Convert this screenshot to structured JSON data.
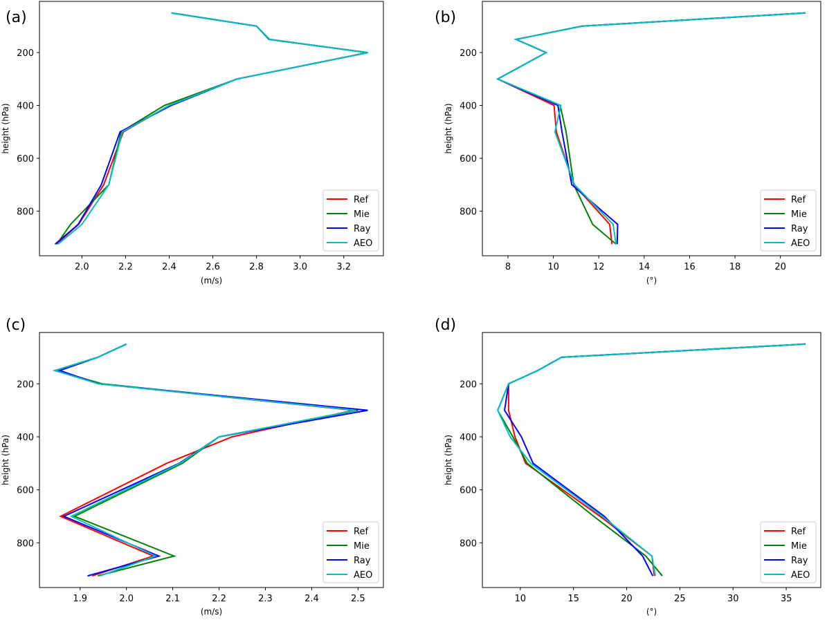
{
  "chart_data": [
    {
      "type": "line",
      "panel_label": "(a)",
      "xlabel": "(m/s)",
      "ylabel": "height (hPa)",
      "y": [
        50,
        100,
        150,
        200,
        300,
        400,
        500,
        700,
        850,
        925
      ],
      "yticks": [
        200,
        400,
        600,
        800
      ],
      "xticks": [
        2.0,
        2.2,
        2.4,
        2.6,
        2.8,
        3.0,
        3.2
      ],
      "xtick_labels": [
        "2.0",
        "2.2",
        "2.4",
        "2.6",
        "2.8",
        "3.0",
        "3.2"
      ],
      "legend": "lower-right",
      "series": [
        {
          "name": "Ref",
          "color": "#ff0000",
          "values": [
            2.41,
            2.8,
            2.86,
            3.31,
            2.71,
            2.4,
            2.19,
            2.1,
            1.985,
            1.883
          ]
        },
        {
          "name": "Mie",
          "color": "#008000",
          "values": [
            2.41,
            2.8,
            2.857,
            3.31,
            2.71,
            2.378,
            2.18,
            2.123,
            1.948,
            1.885
          ]
        },
        {
          "name": "Ray",
          "color": "#0000ff",
          "values": [
            2.41,
            2.8,
            2.86,
            3.31,
            2.71,
            2.41,
            2.175,
            2.089,
            1.983,
            1.877
          ]
        },
        {
          "name": "AEO",
          "color": "#00bfbf",
          "values": [
            2.41,
            2.8,
            2.86,
            3.31,
            2.71,
            2.4,
            2.185,
            2.123,
            2.0,
            1.89
          ]
        }
      ]
    },
    {
      "type": "line",
      "panel_label": "(b)",
      "xlabel": "(°)",
      "ylabel": "height (hPa)",
      "y": [
        50,
        100,
        150,
        200,
        300,
        400,
        500,
        700,
        850,
        925
      ],
      "yticks": [
        200,
        400,
        600,
        800
      ],
      "xticks": [
        8,
        10,
        12,
        14,
        16,
        18,
        20
      ],
      "xtick_labels": [
        "8",
        "10",
        "12",
        "14",
        "16",
        "18",
        "20"
      ],
      "legend": "lower-right",
      "series": [
        {
          "name": "Ref",
          "color": "#ff0000",
          "values": [
            21.1,
            11.27,
            8.36,
            9.68,
            7.55,
            10.03,
            10.13,
            10.91,
            12.48,
            12.58
          ]
        },
        {
          "name": "Mie",
          "color": "#008000",
          "values": [
            21.1,
            11.27,
            8.36,
            9.68,
            7.55,
            10.3,
            10.56,
            10.9,
            11.73,
            12.76
          ]
        },
        {
          "name": "Ray",
          "color": "#0000ff",
          "values": [
            21.1,
            11.27,
            8.36,
            9.68,
            7.55,
            10.2,
            10.38,
            10.81,
            12.83,
            12.81
          ]
        },
        {
          "name": "AEO",
          "color": "#00bfbf",
          "values": [
            21.1,
            11.27,
            8.36,
            9.68,
            7.55,
            10.33,
            10.07,
            10.93,
            12.63,
            12.76
          ]
        }
      ]
    },
    {
      "type": "line",
      "panel_label": "(c)",
      "xlabel": "(m/s)",
      "ylabel": "height (hPa)",
      "y": [
        50,
        100,
        150,
        200,
        300,
        400,
        500,
        700,
        850,
        925
      ],
      "yticks": [
        200,
        400,
        600,
        800
      ],
      "xticks": [
        1.9,
        2.0,
        2.1,
        2.2,
        2.3,
        2.4,
        2.5
      ],
      "xtick_labels": [
        "1.9",
        "2.0",
        "2.1",
        "2.2",
        "2.3",
        "2.4",
        "2.5"
      ],
      "legend": "lower-right",
      "series": [
        {
          "name": "Ref",
          "color": "#ff0000",
          "values": [
            2.0,
            1.938,
            1.846,
            1.94,
            2.49,
            2.228,
            2.087,
            1.858,
            2.058,
            1.926
          ]
        },
        {
          "name": "Mie",
          "color": "#008000",
          "values": [
            2.0,
            1.938,
            1.846,
            1.948,
            2.5,
            2.2,
            2.121,
            1.888,
            2.103,
            1.938
          ]
        },
        {
          "name": "Ray",
          "color": "#0000ff",
          "values": [
            2.0,
            1.938,
            1.856,
            1.94,
            2.521,
            2.2,
            2.114,
            1.865,
            2.07,
            1.916
          ]
        },
        {
          "name": "AEO",
          "color": "#00bfbf",
          "values": [
            2.0,
            1.938,
            1.846,
            1.94,
            2.496,
            2.2,
            2.116,
            1.881,
            2.063,
            1.943
          ]
        }
      ]
    },
    {
      "type": "line",
      "panel_label": "(d)",
      "xlabel": "(°)",
      "ylabel": "height (hPa)",
      "y": [
        50,
        100,
        150,
        200,
        300,
        400,
        500,
        700,
        850,
        925
      ],
      "yticks": [
        200,
        400,
        600,
        800
      ],
      "xticks": [
        10,
        15,
        20,
        25,
        30,
        35
      ],
      "xtick_labels": [
        "10",
        "15",
        "20",
        "25",
        "30",
        "35"
      ],
      "legend": "lower-right",
      "series": [
        {
          "name": "Ref",
          "color": "#ff0000",
          "values": [
            36.8,
            13.88,
            11.63,
            8.9,
            8.9,
            9.5,
            10.5,
            17.5,
            22.38,
            22.6
          ]
        },
        {
          "name": "Mie",
          "color": "#008000",
          "values": [
            36.8,
            13.88,
            11.63,
            8.9,
            7.88,
            9.3,
            10.65,
            16.9,
            21.8,
            23.35
          ]
        },
        {
          "name": "Ray",
          "color": "#0000ff",
          "values": [
            36.8,
            13.88,
            11.63,
            8.9,
            8.52,
            10.1,
            11.2,
            17.9,
            21.5,
            22.45
          ]
        },
        {
          "name": "AEO",
          "color": "#00bfbf",
          "values": [
            36.8,
            13.88,
            11.63,
            8.9,
            7.88,
            9.05,
            10.98,
            17.7,
            22.38,
            22.7
          ]
        }
      ]
    }
  ]
}
